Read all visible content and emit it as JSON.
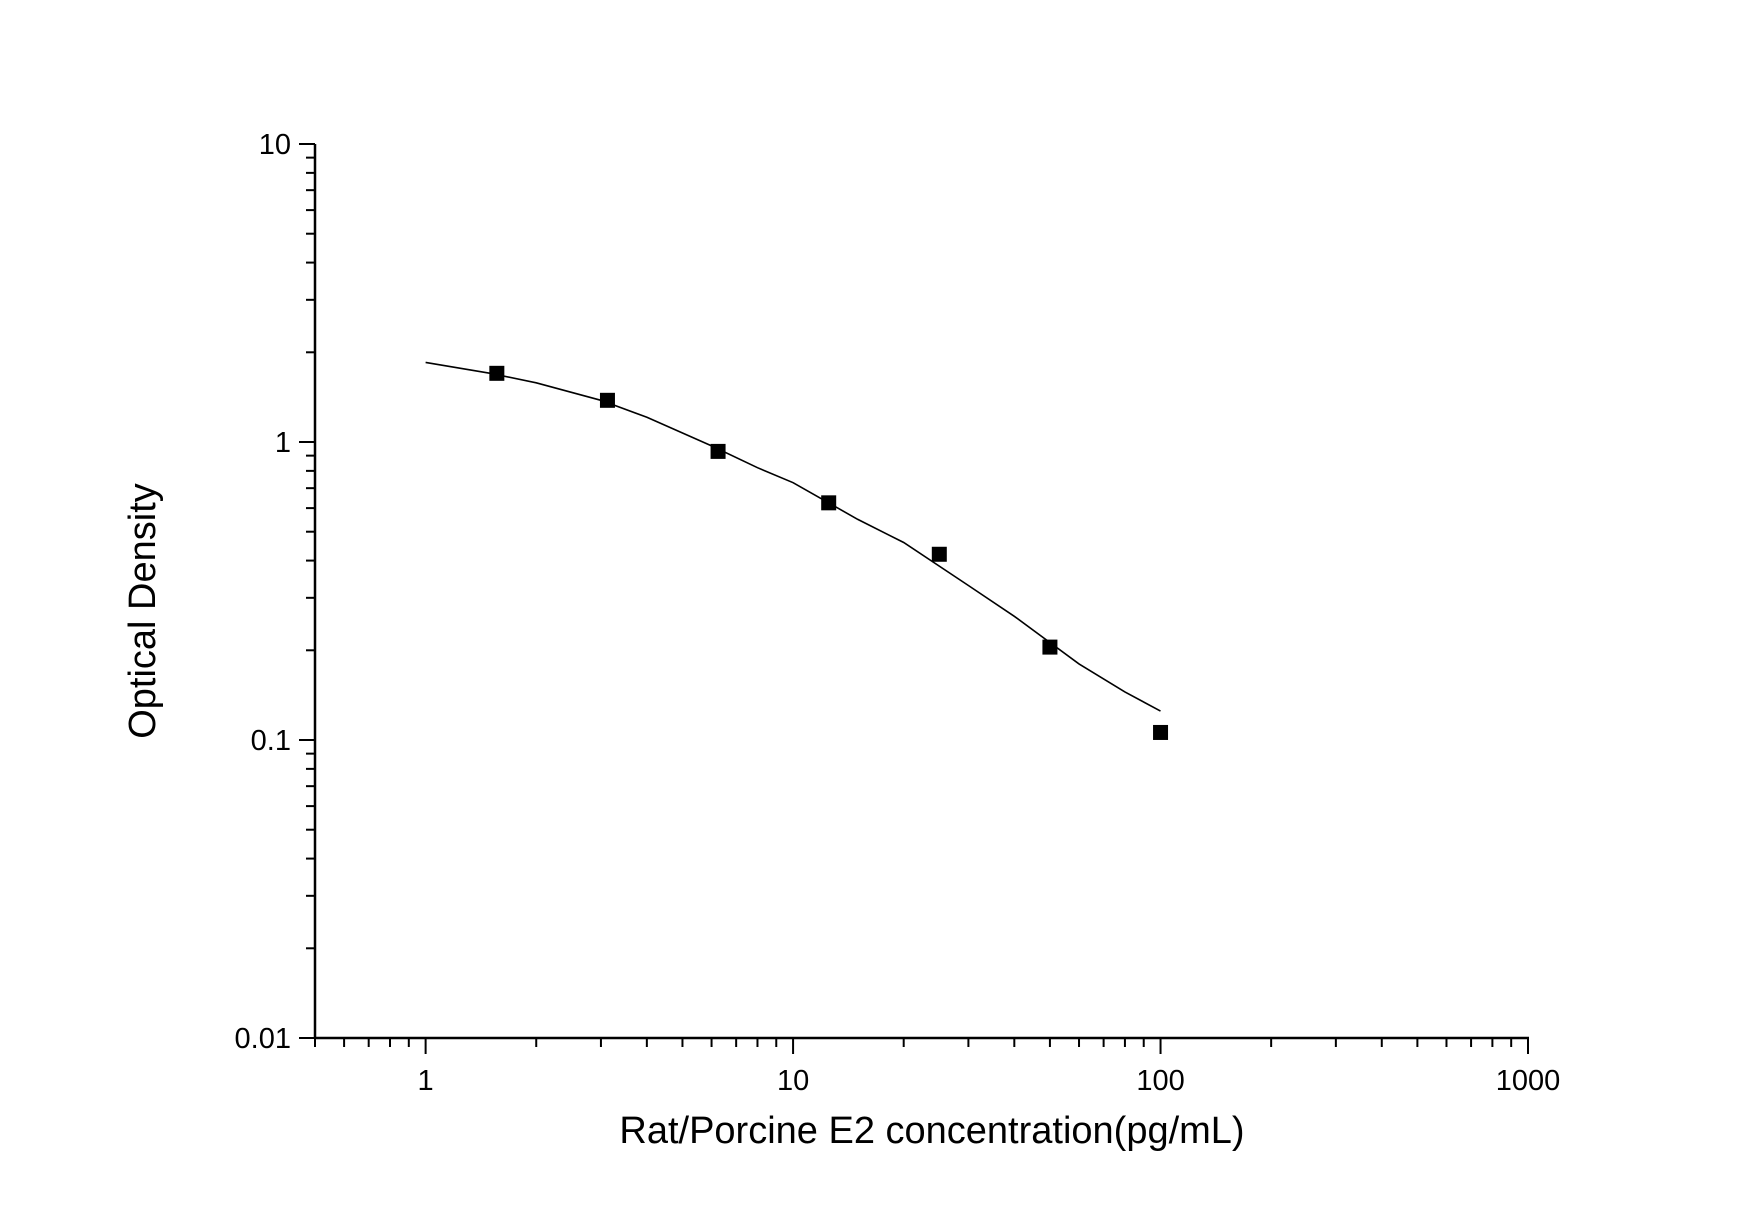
{
  "chart_data": {
    "type": "scatter",
    "title": "",
    "xlabel": "Rat/Porcine E2 concentration(pg/mL)",
    "ylabel": "Optical Density",
    "xscale": "log",
    "yscale": "log",
    "xlim": [
      0.5,
      1000
    ],
    "ylim": [
      0.01,
      10
    ],
    "x_ticks": [
      "1",
      "10",
      "100",
      "1000"
    ],
    "y_ticks": [
      "0.01",
      "0.1",
      "1",
      "10"
    ],
    "grid": false,
    "legend": "none",
    "marker": "square",
    "marker_color": "#000000",
    "line_color": "#000000",
    "series": [
      {
        "x": [
          1.5625,
          3.125,
          6.25,
          12.5,
          25,
          50,
          100
        ],
        "y": [
          1.7,
          1.38,
          0.93,
          0.625,
          0.42,
          0.205,
          0.106
        ]
      }
    ],
    "fit_curve": {
      "x": [
        1,
        1.5,
        2,
        3,
        4,
        6,
        8,
        10,
        15,
        20,
        30,
        40,
        60,
        80,
        100
      ],
      "y": [
        1.85,
        1.7,
        1.58,
        1.38,
        1.21,
        0.97,
        0.82,
        0.73,
        0.55,
        0.46,
        0.33,
        0.26,
        0.18,
        0.145,
        0.125
      ]
    }
  }
}
